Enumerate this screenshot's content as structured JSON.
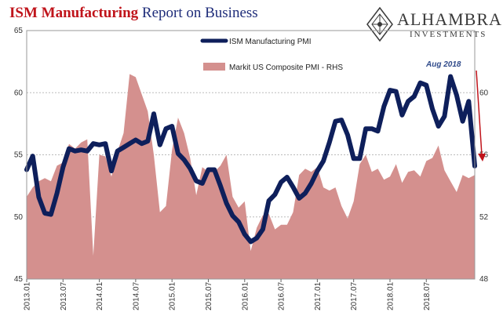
{
  "title": {
    "part1": "ISM Manufacturing",
    "part2": "Report on Business"
  },
  "logo": {
    "brand": "ALHAMBRA",
    "sub": "INVESTMENTS",
    "icon": "diamond-pattern-icon"
  },
  "chart_data": {
    "type": "line+area",
    "x_tick_labels": [
      "2013.01",
      "2013.07",
      "2014.01",
      "2014.07",
      "2015.01",
      "2015.07",
      "2016.01",
      "2016.07",
      "2017.01",
      "2017.07",
      "2018.01",
      "2018.07"
    ],
    "left_axis": {
      "ticks": [
        45,
        50,
        55,
        60,
        65
      ],
      "range": [
        45,
        65
      ]
    },
    "right_axis": {
      "ticks": [
        48,
        52,
        56,
        60
      ],
      "range": [
        48,
        64
      ]
    },
    "annotation": "Aug 2018",
    "colors": {
      "ism": "#0e1f5b",
      "markit": "#d4908e",
      "arrow": "#c0141b"
    },
    "series": [
      {
        "name": "ISM Manufacturing PMI",
        "axis": "left",
        "style": "line",
        "values": [
          53.8,
          54.9,
          51.6,
          50.3,
          50.2,
          51.9,
          54.0,
          55.5,
          55.3,
          55.4,
          55.3,
          55.9,
          55.8,
          55.9,
          53.7,
          55.3,
          55.6,
          55.9,
          56.2,
          55.9,
          56.1,
          58.3,
          55.8,
          57.1,
          57.3,
          55.1,
          54.6,
          53.9,
          52.9,
          52.7,
          53.8,
          53.8,
          52.5,
          51.1,
          50.1,
          49.6,
          48.6,
          48.0,
          48.3,
          49.0,
          51.3,
          51.8,
          52.8,
          53.2,
          52.4,
          51.5,
          51.9,
          52.7,
          53.7,
          54.5,
          56.0,
          57.7,
          57.8,
          56.6,
          54.7,
          54.7,
          57.1,
          57.1,
          56.9,
          58.9,
          60.2,
          60.1,
          58.2,
          59.3,
          59.7,
          60.8,
          60.6,
          58.7,
          57.3,
          58.1,
          61.3,
          59.8,
          57.7,
          59.3,
          54.1
        ]
      },
      {
        "name": "Markit US Composite PMI - RHS",
        "axis": "right",
        "style": "area",
        "values": [
          53.3,
          53.9,
          54.3,
          54.5,
          54.3,
          55.3,
          55.5,
          56.7,
          56.4,
          56.8,
          57.0,
          49.5,
          56.0,
          55.9,
          54.6,
          56.2,
          57.4,
          61.2,
          61.0,
          59.9,
          58.8,
          56.0,
          52.3,
          52.7,
          56.3,
          58.4,
          57.4,
          55.8,
          53.4,
          55.2,
          54.9,
          54.9,
          55.3,
          56.0,
          53.3,
          52.6,
          53.0,
          49.8,
          51.3,
          52.1,
          52.2,
          51.2,
          51.5,
          51.5,
          52.3,
          54.7,
          55.1,
          54.9,
          55.2,
          53.9,
          53.7,
          53.9,
          52.7,
          51.9,
          53.0,
          55.4,
          56.0,
          54.9,
          55.1,
          54.4,
          54.6,
          55.4,
          54.2,
          54.9,
          55.0,
          54.6,
          55.6,
          55.8,
          56.6,
          55.0,
          54.3,
          53.6,
          54.7,
          54.5,
          54.7
        ]
      }
    ]
  }
}
